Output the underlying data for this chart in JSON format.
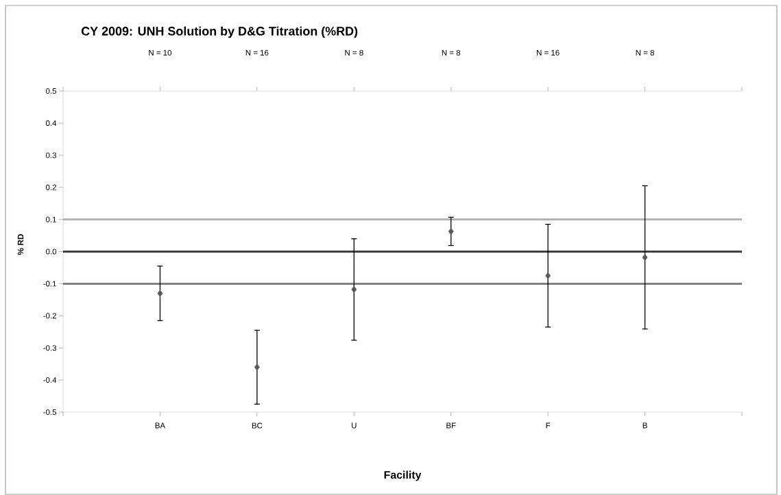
{
  "chart_data": {
    "type": "scatter",
    "title": "CY 2009: UNH Solution by D&G Titration (%RD)",
    "xlabel": "Facility",
    "ylabel": "% RD",
    "categories": [
      "BA",
      "BC",
      "U",
      "BF",
      "F",
      "B"
    ],
    "series": [
      {
        "color": "#595959",
        "values": [
          -0.13,
          -0.36,
          -0.118,
          0.063,
          -0.075,
          -0.018
        ],
        "errors": [
          0.085,
          0.115,
          0.158,
          0.044,
          0.16,
          0.223
        ]
      }
    ],
    "marker": "diamond",
    "ylim": [
      -0.5,
      0.5
    ],
    "yticks": [
      -0.5,
      -0.4,
      -0.3,
      -0.2,
      -0.1,
      {
        "value": 0,
        "label": "0.0"
      },
      0.1,
      0.2,
      0.3,
      0.4,
      0.5
    ],
    "ref_lines": [
      {
        "axis": "y",
        "value": 0.1,
        "color": "#b2b2b2"
      },
      {
        "axis": "y",
        "value": 0,
        "color": "#404040"
      },
      {
        "axis": "y",
        "value": -0.1,
        "color": "#808080"
      }
    ],
    "annotations": [
      "N = 10",
      "N = 16",
      "N = 8",
      "N = 8",
      "N = 16",
      "N = 8"
    ]
  }
}
